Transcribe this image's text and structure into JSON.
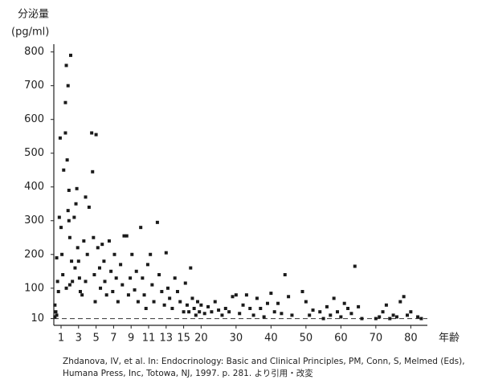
{
  "chart_data": {
    "type": "scatter",
    "y_label": [
      "分泌量",
      "(pg/ml)"
    ],
    "x_label": "年齢",
    "citation": [
      "Zhdanova, IV, et al. In: Endocrinology: Basic and Clinical Principles, PM, Conn, S, Melmed (Eds),",
      "Humana Press, Inc, Totowa, NJ, 1997. p. 281. より引用・改変"
    ],
    "xlim": [
      0,
      84
    ],
    "ylim": [
      -10,
      823
    ],
    "xticks": [
      1,
      3,
      5,
      7,
      9,
      11,
      13,
      15,
      20,
      30,
      40,
      50,
      60,
      70,
      80
    ],
    "yticks": [
      10,
      100,
      200,
      300,
      400,
      500,
      600,
      700,
      800
    ],
    "hline": 10,
    "series": [
      {
        "color": "#1a1a1a",
        "x": [
          0.3,
          0.4,
          0.5,
          0.3,
          0.6,
          0.7,
          0.5,
          0.8,
          0.9,
          1.0,
          1.1,
          1.2,
          1.3,
          1.5,
          1.5,
          1.6,
          1.7,
          1.8,
          1.9,
          2.1,
          1.8,
          1.9,
          2.0,
          2.2,
          2.3,
          1.6,
          2.0,
          2.5,
          2.7,
          2.8,
          2.9,
          3.0,
          3.1,
          3.2,
          2.6,
          3.4,
          3.6,
          3.8,
          3.8,
          4.0,
          4.2,
          4.5,
          4.6,
          4.7,
          4.8,
          4.9,
          5.0,
          5.2,
          5.4,
          5.5,
          5.7,
          5.9,
          6.0,
          6.2,
          6.5,
          6.7,
          6.9,
          7.1,
          7.3,
          7.5,
          7.8,
          8.0,
          8.2,
          8.5,
          8.7,
          8.9,
          9.1,
          9.4,
          9.6,
          9.8,
          10.1,
          10.3,
          10.5,
          10.7,
          10.9,
          11.2,
          11.4,
          11.6,
          12.0,
          12.2,
          12.5,
          12.8,
          13.0,
          13.2,
          13.4,
          13.7,
          14.0,
          14.3,
          14.6,
          15.0,
          15.5,
          16,
          16.5,
          17,
          17.5,
          18,
          18.5,
          19,
          19.5,
          20,
          21,
          22,
          23,
          24,
          25,
          26,
          27,
          28,
          29,
          30,
          31,
          32,
          33,
          34,
          35,
          36,
          37,
          38,
          39,
          40,
          41,
          42,
          43,
          44,
          45,
          46,
          49,
          50,
          51,
          52,
          54,
          55,
          56,
          57,
          58,
          59,
          60,
          61,
          62,
          63,
          64,
          65,
          66,
          70,
          71,
          72,
          73,
          74,
          75,
          76,
          77,
          78,
          79,
          80,
          82,
          83
        ],
        "values": [
          50,
          30,
          20,
          15,
          120,
          90,
          190,
          310,
          545,
          280,
          200,
          140,
          450,
          560,
          650,
          760,
          480,
          700,
          390,
          790,
          330,
          300,
          250,
          180,
          120,
          100,
          110,
          310,
          350,
          395,
          220,
          180,
          130,
          90,
          160,
          80,
          240,
          370,
          120,
          200,
          340,
          560,
          445,
          250,
          140,
          60,
          555,
          220,
          160,
          100,
          230,
          180,
          120,
          80,
          240,
          150,
          90,
          200,
          130,
          60,
          170,
          110,
          255,
          255,
          80,
          130,
          200,
          95,
          150,
          60,
          280,
          130,
          80,
          40,
          170,
          200,
          110,
          60,
          295,
          140,
          90,
          50,
          205,
          100,
          70,
          40,
          130,
          90,
          60,
          30,
          115,
          50,
          30,
          160,
          70,
          40,
          20,
          60,
          30,
          50,
          25,
          45,
          30,
          60,
          35,
          20,
          40,
          30,
          75,
          80,
          25,
          50,
          80,
          40,
          20,
          70,
          40,
          15,
          55,
          85,
          30,
          55,
          25,
          140,
          75,
          20,
          90,
          60,
          20,
          35,
          30,
          10,
          45,
          20,
          70,
          30,
          15,
          55,
          40,
          25,
          165,
          45,
          10,
          10,
          15,
          30,
          50,
          10,
          20,
          15,
          60,
          75,
          20,
          30,
          15,
          10
        ]
      }
    ]
  }
}
